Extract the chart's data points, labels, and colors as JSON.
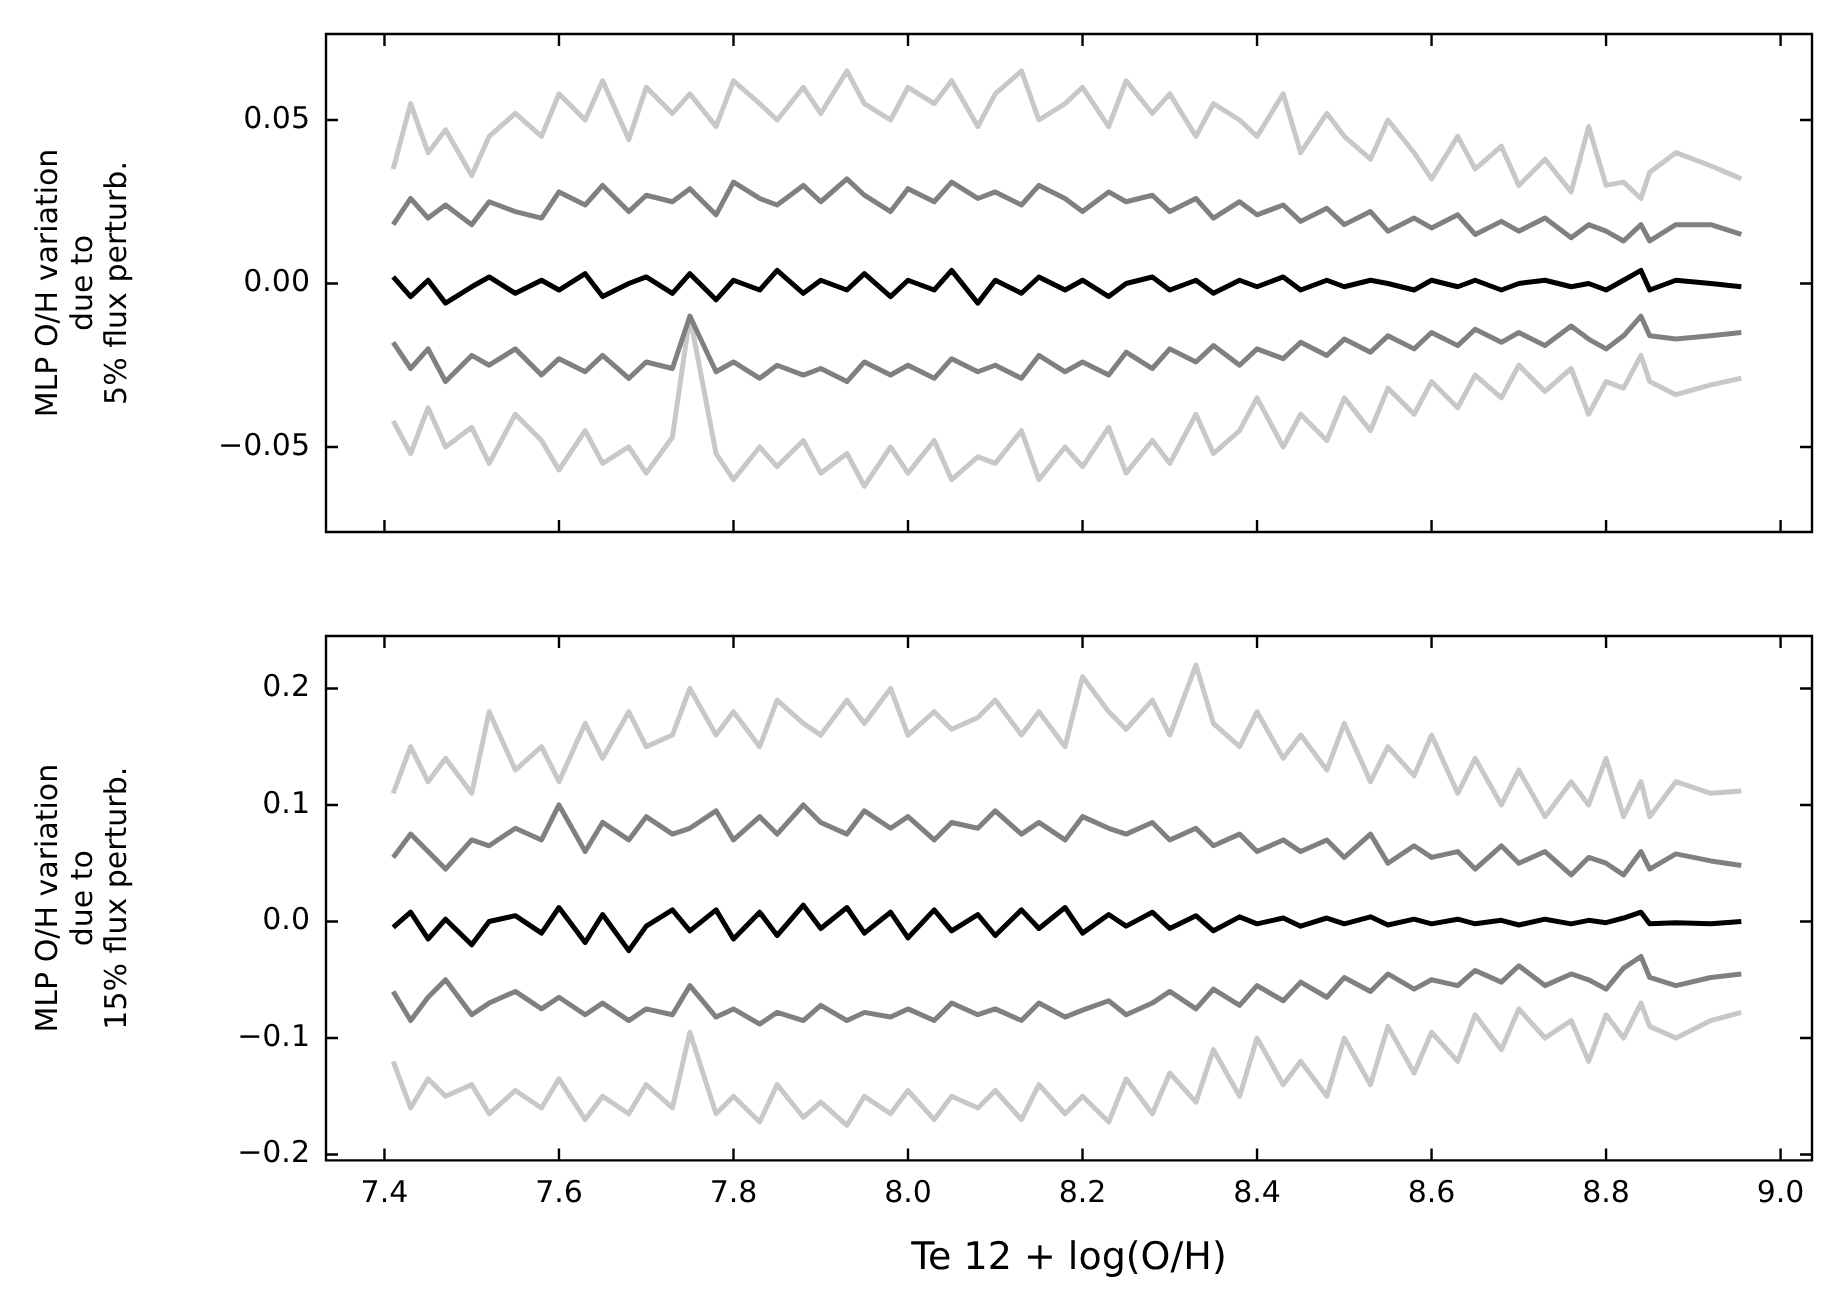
{
  "chart_data": [
    {
      "type": "line",
      "ylabel": "MLP O/H variation\ndue to\n5% flux perturb.",
      "xlim": [
        7.333,
        9.036
      ],
      "xticks": [
        7.4,
        7.6,
        7.8,
        8.0,
        8.2,
        8.4,
        8.6,
        8.8,
        9.0
      ],
      "ylim": [
        -0.076,
        0.0763
      ],
      "yticks": [
        {
          "value": -0.05,
          "label": "−0.05"
        },
        {
          "value": 0,
          "label": "0.00"
        },
        {
          "value": 0.05,
          "label": "0.05"
        }
      ],
      "tick_labels": "y",
      "grid": false,
      "legend": false,
      "marker": "none",
      "line_style": "solid",
      "x": [
        7.41,
        7.43,
        7.45,
        7.47,
        7.5,
        7.52,
        7.55,
        7.58,
        7.6,
        7.63,
        7.65,
        7.68,
        7.7,
        7.73,
        7.75,
        7.78,
        7.8,
        7.83,
        7.85,
        7.88,
        7.9,
        7.93,
        7.95,
        7.98,
        8.0,
        8.03,
        8.05,
        8.08,
        8.1,
        8.13,
        8.15,
        8.18,
        8.2,
        8.23,
        8.25,
        8.28,
        8.3,
        8.33,
        8.35,
        8.38,
        8.4,
        8.43,
        8.45,
        8.48,
        8.5,
        8.53,
        8.55,
        8.58,
        8.6,
        8.63,
        8.65,
        8.68,
        8.7,
        8.73,
        8.76,
        8.78,
        8.8,
        8.82,
        8.84,
        8.85,
        8.88,
        8.92,
        8.955
      ],
      "series": [
        {
          "color": "#c8c8c8",
          "values": [
            0.035,
            0.055,
            0.04,
            0.047,
            0.033,
            0.045,
            0.052,
            0.045,
            0.058,
            0.05,
            0.062,
            0.044,
            0.06,
            0.052,
            0.058,
            0.048,
            0.062,
            0.055,
            0.05,
            0.06,
            0.052,
            0.065,
            0.055,
            0.05,
            0.06,
            0.055,
            0.062,
            0.048,
            0.058,
            0.065,
            0.05,
            0.055,
            0.06,
            0.048,
            0.062,
            0.052,
            0.058,
            0.045,
            0.055,
            0.05,
            0.045,
            0.058,
            0.04,
            0.052,
            0.045,
            0.038,
            0.05,
            0.04,
            0.032,
            0.045,
            0.035,
            0.042,
            0.03,
            0.038,
            0.028,
            0.048,
            0.03,
            0.031,
            0.026,
            0.034,
            0.04,
            0.036,
            0.032
          ]
        },
        {
          "color": "#808080",
          "values": [
            0.018,
            0.026,
            0.02,
            0.024,
            0.018,
            0.025,
            0.022,
            0.02,
            0.028,
            0.024,
            0.03,
            0.022,
            0.027,
            0.025,
            0.029,
            0.021,
            0.031,
            0.026,
            0.024,
            0.03,
            0.025,
            0.032,
            0.027,
            0.022,
            0.029,
            0.025,
            0.031,
            0.026,
            0.028,
            0.024,
            0.03,
            0.026,
            0.022,
            0.028,
            0.025,
            0.027,
            0.022,
            0.026,
            0.02,
            0.025,
            0.021,
            0.024,
            0.019,
            0.023,
            0.018,
            0.022,
            0.016,
            0.02,
            0.017,
            0.021,
            0.015,
            0.019,
            0.016,
            0.02,
            0.014,
            0.018,
            0.016,
            0.013,
            0.018,
            0.013,
            0.018,
            0.018,
            0.015
          ]
        },
        {
          "color": "#000000",
          "values": [
            0.002,
            -0.004,
            0.001,
            -0.006,
            -0.001,
            0.002,
            -0.003,
            0.001,
            -0.002,
            0.003,
            -0.004,
            0.0,
            0.002,
            -0.003,
            0.003,
            -0.005,
            0.001,
            -0.002,
            0.004,
            -0.003,
            0.001,
            -0.002,
            0.003,
            -0.004,
            0.001,
            -0.002,
            0.004,
            -0.006,
            0.001,
            -0.003,
            0.002,
            -0.002,
            0.001,
            -0.004,
            0.0,
            0.002,
            -0.002,
            0.001,
            -0.003,
            0.001,
            -0.001,
            0.002,
            -0.002,
            0.001,
            -0.001,
            0.001,
            0.0,
            -0.002,
            0.001,
            -0.001,
            0.001,
            -0.002,
            0.0,
            0.001,
            -0.001,
            0.0,
            -0.002,
            0.001,
            0.004,
            -0.002,
            0.001,
            0.0,
            -0.001
          ]
        },
        {
          "color": "#808080",
          "values": [
            -0.018,
            -0.026,
            -0.02,
            -0.03,
            -0.022,
            -0.025,
            -0.02,
            -0.028,
            -0.023,
            -0.027,
            -0.022,
            -0.029,
            -0.024,
            -0.026,
            -0.01,
            -0.027,
            -0.024,
            -0.029,
            -0.025,
            -0.028,
            -0.026,
            -0.03,
            -0.024,
            -0.028,
            -0.025,
            -0.029,
            -0.023,
            -0.027,
            -0.025,
            -0.029,
            -0.022,
            -0.027,
            -0.024,
            -0.028,
            -0.021,
            -0.026,
            -0.02,
            -0.024,
            -0.019,
            -0.025,
            -0.02,
            -0.023,
            -0.018,
            -0.022,
            -0.017,
            -0.021,
            -0.016,
            -0.02,
            -0.015,
            -0.019,
            -0.014,
            -0.018,
            -0.015,
            -0.019,
            -0.013,
            -0.017,
            -0.02,
            -0.016,
            -0.01,
            -0.016,
            -0.017,
            -0.016,
            -0.015
          ]
        },
        {
          "color": "#c8c8c8",
          "values": [
            -0.042,
            -0.052,
            -0.038,
            -0.05,
            -0.044,
            -0.055,
            -0.04,
            -0.048,
            -0.057,
            -0.045,
            -0.055,
            -0.05,
            -0.058,
            -0.047,
            -0.01,
            -0.052,
            -0.06,
            -0.05,
            -0.056,
            -0.048,
            -0.058,
            -0.052,
            -0.062,
            -0.05,
            -0.058,
            -0.048,
            -0.06,
            -0.053,
            -0.055,
            -0.045,
            -0.06,
            -0.05,
            -0.056,
            -0.044,
            -0.058,
            -0.048,
            -0.055,
            -0.04,
            -0.052,
            -0.045,
            -0.035,
            -0.05,
            -0.04,
            -0.048,
            -0.035,
            -0.045,
            -0.032,
            -0.04,
            -0.03,
            -0.038,
            -0.028,
            -0.035,
            -0.025,
            -0.033,
            -0.026,
            -0.04,
            -0.03,
            -0.032,
            -0.022,
            -0.03,
            -0.034,
            -0.031,
            -0.029
          ]
        }
      ]
    },
    {
      "type": "line",
      "xlabel": "Te 12 + log(O/H)",
      "ylabel": "MLP O/H variation\ndue to\n15% flux perturb.",
      "xlim": [
        7.333,
        9.036
      ],
      "xticks": [
        7.4,
        7.6,
        7.8,
        {
          "value": 8.0,
          "label": "8.0"
        },
        8.2,
        8.4,
        8.6,
        8.8,
        {
          "value": 9.0,
          "label": "9.0"
        }
      ],
      "ylim": [
        -0.205,
        0.245
      ],
      "yticks": [
        {
          "value": -0.2,
          "label": "−0.2"
        },
        {
          "value": -0.1,
          "label": "−0.1"
        },
        {
          "value": 0,
          "label": "0.0"
        },
        0.1,
        0.2
      ],
      "grid": false,
      "legend": false,
      "marker": "none",
      "line_style": "solid",
      "x": [
        7.41,
        7.43,
        7.45,
        7.47,
        7.5,
        7.52,
        7.55,
        7.58,
        7.6,
        7.63,
        7.65,
        7.68,
        7.7,
        7.73,
        7.75,
        7.78,
        7.8,
        7.83,
        7.85,
        7.88,
        7.9,
        7.93,
        7.95,
        7.98,
        8.0,
        8.03,
        8.05,
        8.08,
        8.1,
        8.13,
        8.15,
        8.18,
        8.2,
        8.23,
        8.25,
        8.28,
        8.3,
        8.33,
        8.35,
        8.38,
        8.4,
        8.43,
        8.45,
        8.48,
        8.5,
        8.53,
        8.55,
        8.58,
        8.6,
        8.63,
        8.65,
        8.68,
        8.7,
        8.73,
        8.76,
        8.78,
        8.8,
        8.82,
        8.84,
        8.85,
        8.88,
        8.92,
        8.955
      ],
      "series": [
        {
          "color": "#c8c8c8",
          "values": [
            0.11,
            0.15,
            0.12,
            0.14,
            0.11,
            0.18,
            0.13,
            0.15,
            0.12,
            0.17,
            0.14,
            0.18,
            0.15,
            0.16,
            0.2,
            0.16,
            0.18,
            0.15,
            0.19,
            0.17,
            0.16,
            0.19,
            0.17,
            0.2,
            0.16,
            0.18,
            0.165,
            0.175,
            0.19,
            0.16,
            0.18,
            0.15,
            0.21,
            0.18,
            0.165,
            0.19,
            0.16,
            0.22,
            0.17,
            0.15,
            0.18,
            0.14,
            0.16,
            0.13,
            0.17,
            0.12,
            0.15,
            0.125,
            0.16,
            0.11,
            0.14,
            0.1,
            0.13,
            0.09,
            0.12,
            0.1,
            0.14,
            0.09,
            0.12,
            0.09,
            0.12,
            0.11,
            0.112
          ]
        },
        {
          "color": "#808080",
          "values": [
            0.055,
            0.075,
            0.06,
            0.045,
            0.07,
            0.065,
            0.08,
            0.07,
            0.1,
            0.06,
            0.085,
            0.07,
            0.09,
            0.075,
            0.08,
            0.095,
            0.07,
            0.09,
            0.075,
            0.1,
            0.085,
            0.075,
            0.095,
            0.08,
            0.09,
            0.07,
            0.085,
            0.08,
            0.095,
            0.075,
            0.085,
            0.07,
            0.09,
            0.08,
            0.075,
            0.085,
            0.07,
            0.08,
            0.065,
            0.075,
            0.06,
            0.07,
            0.06,
            0.07,
            0.055,
            0.075,
            0.05,
            0.065,
            0.055,
            0.06,
            0.045,
            0.065,
            0.05,
            0.06,
            0.04,
            0.055,
            0.05,
            0.04,
            0.06,
            0.045,
            0.058,
            0.052,
            0.048
          ]
        },
        {
          "color": "#000000",
          "values": [
            -0.005,
            0.008,
            -0.015,
            0.002,
            -0.02,
            0.0,
            0.005,
            -0.01,
            0.012,
            -0.018,
            0.006,
            -0.025,
            -0.004,
            0.01,
            -0.008,
            0.01,
            -0.015,
            0.008,
            -0.012,
            0.014,
            -0.006,
            0.012,
            -0.01,
            0.008,
            -0.014,
            0.01,
            -0.008,
            0.006,
            -0.012,
            0.01,
            -0.006,
            0.012,
            -0.01,
            0.006,
            -0.004,
            0.008,
            -0.006,
            0.005,
            -0.008,
            0.004,
            -0.002,
            0.003,
            -0.004,
            0.003,
            -0.002,
            0.004,
            -0.003,
            0.002,
            -0.002,
            0.002,
            -0.002,
            0.001,
            -0.003,
            0.002,
            -0.002,
            0.001,
            -0.001,
            0.003,
            0.008,
            -0.002,
            -0.001,
            -0.002,
            0.0
          ]
        },
        {
          "color": "#808080",
          "values": [
            -0.06,
            -0.085,
            -0.065,
            -0.05,
            -0.08,
            -0.07,
            -0.06,
            -0.075,
            -0.065,
            -0.08,
            -0.07,
            -0.085,
            -0.075,
            -0.08,
            -0.055,
            -0.082,
            -0.075,
            -0.088,
            -0.078,
            -0.085,
            -0.072,
            -0.085,
            -0.078,
            -0.082,
            -0.075,
            -0.085,
            -0.07,
            -0.08,
            -0.075,
            -0.085,
            -0.07,
            -0.082,
            -0.076,
            -0.068,
            -0.08,
            -0.07,
            -0.06,
            -0.075,
            -0.058,
            -0.072,
            -0.055,
            -0.068,
            -0.052,
            -0.065,
            -0.048,
            -0.06,
            -0.045,
            -0.058,
            -0.05,
            -0.055,
            -0.042,
            -0.052,
            -0.038,
            -0.055,
            -0.045,
            -0.05,
            -0.058,
            -0.04,
            -0.03,
            -0.048,
            -0.055,
            -0.048,
            -0.045
          ]
        },
        {
          "color": "#c8c8c8",
          "values": [
            -0.12,
            -0.16,
            -0.135,
            -0.15,
            -0.14,
            -0.165,
            -0.145,
            -0.16,
            -0.135,
            -0.17,
            -0.15,
            -0.165,
            -0.14,
            -0.16,
            -0.095,
            -0.165,
            -0.15,
            -0.172,
            -0.14,
            -0.168,
            -0.155,
            -0.175,
            -0.15,
            -0.165,
            -0.145,
            -0.17,
            -0.15,
            -0.16,
            -0.145,
            -0.17,
            -0.14,
            -0.165,
            -0.15,
            -0.172,
            -0.135,
            -0.165,
            -0.13,
            -0.155,
            -0.11,
            -0.15,
            -0.1,
            -0.14,
            -0.12,
            -0.15,
            -0.1,
            -0.14,
            -0.09,
            -0.13,
            -0.095,
            -0.12,
            -0.08,
            -0.11,
            -0.075,
            -0.1,
            -0.085,
            -0.12,
            -0.08,
            -0.1,
            -0.07,
            -0.09,
            -0.1,
            -0.085,
            -0.078
          ]
        }
      ]
    }
  ]
}
